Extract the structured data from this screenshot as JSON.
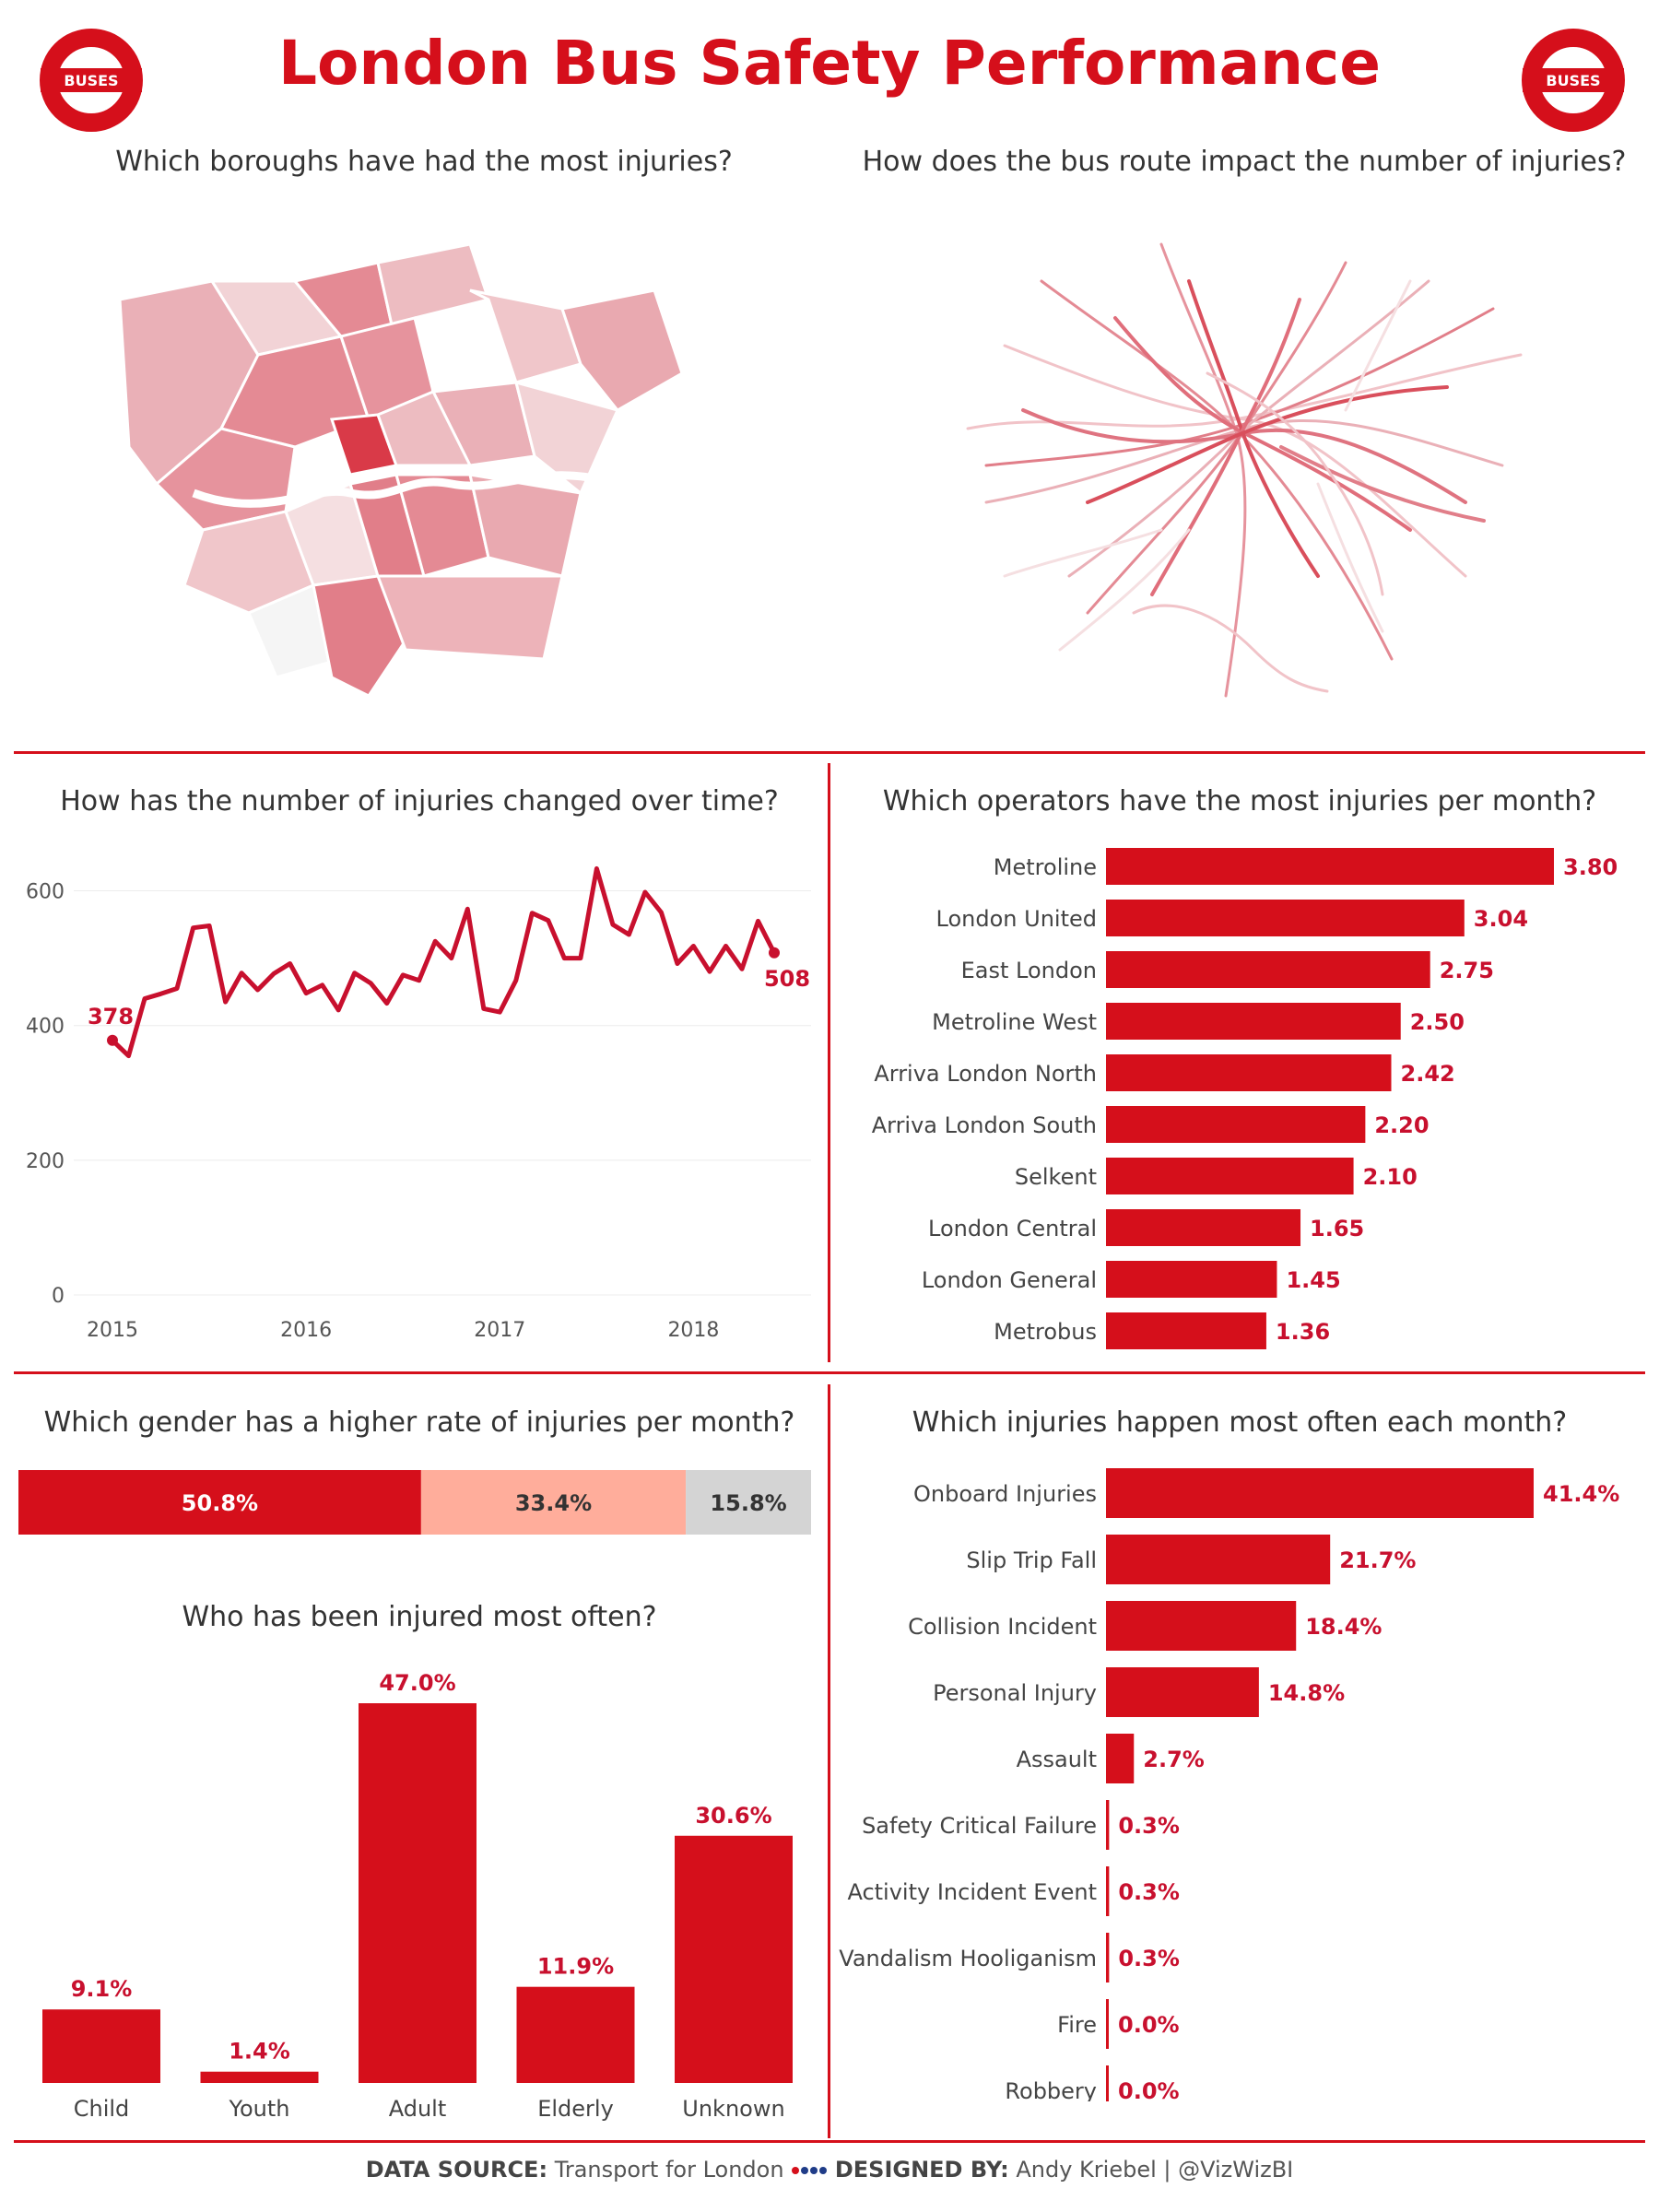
{
  "header": {
    "title": "London Bus Safety Performance",
    "logo_text": "BUSES",
    "accent": "#d50f1b"
  },
  "map_panel": {
    "question": "Which boroughs have had the most injuries?"
  },
  "routes_panel": {
    "question": "How does the bus route impact the number of injuries?"
  },
  "time_panel": {
    "question": "How has the number of injuries changed over time?"
  },
  "operators_panel": {
    "question": "Which operators have the most injuries per month?"
  },
  "gender_panel": {
    "question": "Which gender has a higher rate of injuries per month?"
  },
  "age_panel": {
    "question": "Who has been injured most often?"
  },
  "injury_panel": {
    "question": "Which injuries happen most often each month?"
  },
  "footer": {
    "source_label": "DATA SOURCE:",
    "source_value": "Transport for London",
    "designed_label": "DESIGNED BY:",
    "designed_value": "Andy Kriebel | @VizWizBI"
  },
  "chart_data": [
    {
      "id": "injuries_over_time",
      "type": "line",
      "x_ticks": [
        "2015",
        "2016",
        "2017",
        "2018"
      ],
      "y_ticks": [
        0,
        200,
        400,
        600
      ],
      "ylim": [
        0,
        650
      ],
      "x": [
        "2015-01",
        "2015-02",
        "2015-03",
        "2015-04",
        "2015-05",
        "2015-06",
        "2015-07",
        "2015-08",
        "2015-09",
        "2015-10",
        "2015-11",
        "2015-12",
        "2016-01",
        "2016-02",
        "2016-03",
        "2016-04",
        "2016-05",
        "2016-06",
        "2016-07",
        "2016-08",
        "2016-09",
        "2016-10",
        "2016-11",
        "2016-12",
        "2017-01",
        "2017-02",
        "2017-03",
        "2017-04",
        "2017-05",
        "2017-06",
        "2017-07",
        "2017-08",
        "2017-09",
        "2017-10",
        "2017-11",
        "2017-12",
        "2018-01",
        "2018-02",
        "2018-03",
        "2018-04",
        "2018-05",
        "2018-06"
      ],
      "values": [
        378,
        355,
        440,
        447,
        455,
        545,
        548,
        435,
        478,
        453,
        477,
        492,
        448,
        460,
        423,
        478,
        463,
        433,
        475,
        467,
        525,
        500,
        573,
        425,
        420,
        467,
        567,
        556,
        500,
        500,
        633,
        550,
        535,
        598,
        568,
        492,
        518,
        480,
        518,
        484,
        555,
        508
      ],
      "annotations": [
        {
          "x": "2015-01",
          "label": "378"
        },
        {
          "x": "2018-06",
          "label": "508"
        }
      ],
      "color": "#c8102e"
    },
    {
      "id": "operators",
      "type": "bar",
      "orientation": "horizontal",
      "categories": [
        "Metroline",
        "London United",
        "East London",
        "Metroline West",
        "Arriva London North",
        "Arriva London South",
        "Selkent",
        "London Central",
        "London General",
        "Metrobus"
      ],
      "values": [
        3.8,
        3.04,
        2.75,
        2.5,
        2.42,
        2.2,
        2.1,
        1.65,
        1.45,
        1.36
      ],
      "labels": [
        "3.80",
        "3.04",
        "2.75",
        "2.50",
        "2.42",
        "2.20",
        "2.10",
        "1.65",
        "1.45",
        "1.36"
      ],
      "xlim": [
        0,
        3.8
      ],
      "color": "#d50f1b"
    },
    {
      "id": "gender",
      "type": "bar",
      "orientation": "stacked-100",
      "values": [
        50.8,
        33.4,
        15.8
      ],
      "labels": [
        "50.8%",
        "33.4%",
        "15.8%"
      ],
      "colors": [
        "#d50f1b",
        "#ffad9b",
        "#d4d4d4"
      ]
    },
    {
      "id": "age",
      "type": "bar",
      "categories": [
        "Child",
        "Youth",
        "Adult",
        "Elderly",
        "Unknown"
      ],
      "values": [
        9.1,
        1.4,
        47.0,
        11.9,
        30.6
      ],
      "labels": [
        "9.1%",
        "1.4%",
        "47.0%",
        "11.9%",
        "30.6%"
      ],
      "ylim": [
        0,
        47
      ],
      "color": "#d50f1b"
    },
    {
      "id": "injury_types",
      "type": "bar",
      "orientation": "horizontal",
      "categories": [
        "Onboard Injuries",
        "Slip Trip Fall",
        "Collision Incident",
        "Personal Injury",
        "Assault",
        "Safety Critical Failure",
        "Activity Incident Event",
        "Vandalism Hooliganism",
        "Fire",
        "Robbery"
      ],
      "values": [
        41.4,
        21.7,
        18.4,
        14.8,
        2.7,
        0.3,
        0.3,
        0.3,
        0.0,
        0.0
      ],
      "labels": [
        "41.4%",
        "21.7%",
        "18.4%",
        "14.8%",
        "2.7%",
        "0.3%",
        "0.3%",
        "0.3%",
        "0.0%",
        "0.0%"
      ],
      "xlim": [
        0,
        41.4
      ],
      "color": "#d50f1b"
    }
  ]
}
